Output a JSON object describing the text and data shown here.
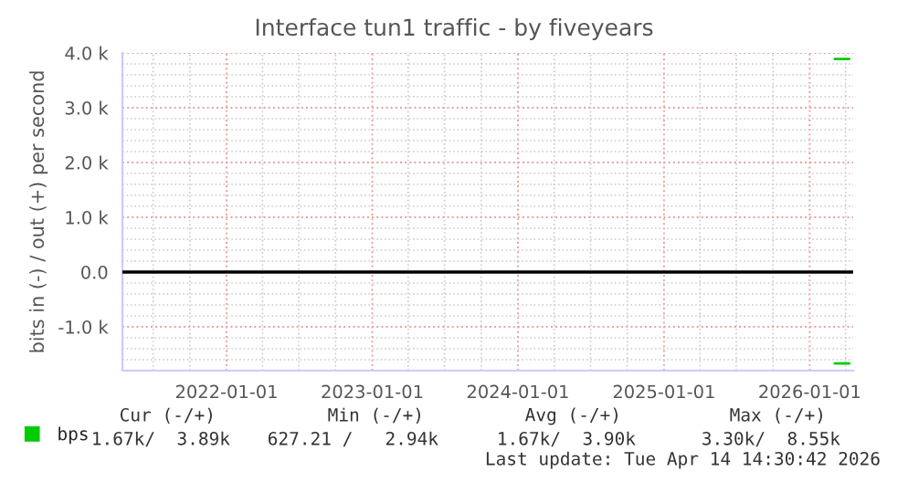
{
  "chart_data": {
    "type": "line",
    "title": "Interface tun1 traffic - by fiveyears",
    "ylabel": "bits in (-) / out (+) per second",
    "series": [
      {
        "name": "bps",
        "color": "#00cc00",
        "x": [
          "2026-03-05",
          "2026-04-10"
        ],
        "values": [
          3890,
          3890
        ]
      },
      {
        "color": "#00cc00",
        "x": [
          "2026-03-05",
          "2026-04-10"
        ],
        "values": [
          -1670,
          -1670
        ]
      }
    ],
    "xlim": [
      "2021-04-15",
      "2026-04-20"
    ],
    "xticks": [
      "2022-01-01",
      "2023-01-01",
      "2024-01-01",
      "2025-01-01",
      "2026-01-01"
    ],
    "ylim": [
      -1800,
      4000
    ],
    "yticks": [
      {
        "value": -1000,
        "label": "-1.0 k"
      },
      {
        "value": 0,
        "label": "0.0"
      },
      {
        "value": 1000,
        "label": "1.0 k"
      },
      {
        "value": 2000,
        "label": "2.0 k"
      },
      {
        "value": 3000,
        "label": "3.0 k"
      },
      {
        "value": 4000,
        "label": "4.0 k"
      }
    ],
    "ref_lines": [
      {
        "axis": "y",
        "value": 0,
        "color": "#000000"
      }
    ],
    "grid": true,
    "legend": "bottom",
    "marker": "none",
    "line_style": "solid",
    "annotations": [
      "Cur (-/+)",
      "Min (-/+)",
      "Avg (-/+)",
      "Max (-/+)",
      "1.67k/  3.89k",
      "627.21 /   2.94k",
      "1.67k/  3.90k",
      "3.30k/  8.55k",
      "Last update: Tue Apr 14 14:30:42 2026"
    ]
  }
}
